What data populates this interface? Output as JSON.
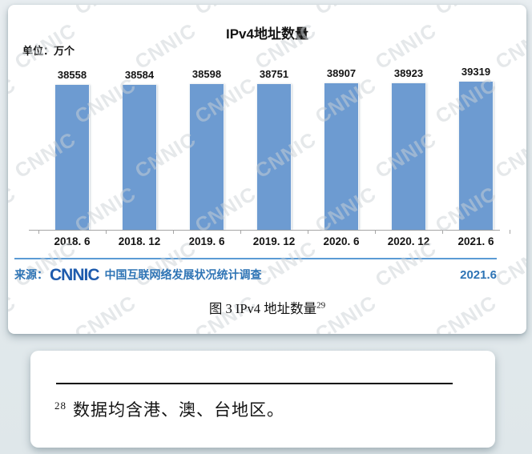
{
  "chart_data": {
    "type": "bar",
    "title": "IPv4地址数量",
    "unit_label": "单位：万个",
    "categories": [
      "2018. 6",
      "2018. 12",
      "2019. 6",
      "2019. 12",
      "2020. 6",
      "2020. 12",
      "2021. 6"
    ],
    "values": [
      38558,
      38584,
      38598,
      38751,
      38907,
      38923,
      39319
    ],
    "value_labels": [
      "38558",
      "38584",
      "38598",
      "38751",
      "38907",
      "38923",
      "39319"
    ],
    "ylim": [
      0,
      39319
    ],
    "grid": "off",
    "legend": "none",
    "bar_color": "#6d9bd1",
    "watermark_text": "CNNIC"
  },
  "source": {
    "prefix": "来源：",
    "logo": "CNNIC",
    "org_text": "中国互联网络发展状况统计调查",
    "date": "2021.6",
    "accent_color": "#2e74b5"
  },
  "caption": {
    "text": "图 3  IPv4 地址数量",
    "footnote_ref": "29"
  },
  "footnote": {
    "marker": "28",
    "text": "数据均含港、澳、台地区。"
  }
}
